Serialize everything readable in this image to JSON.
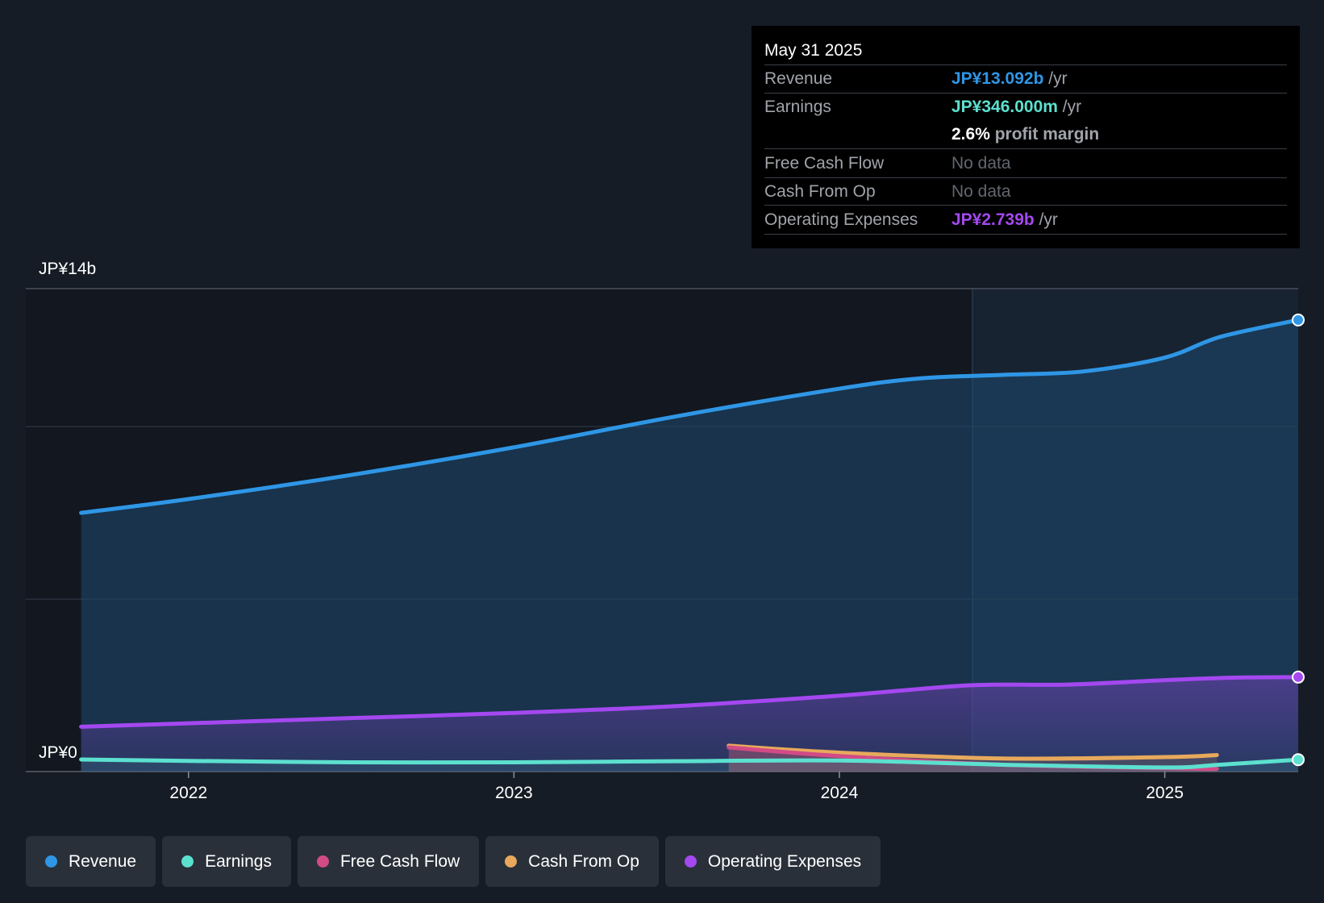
{
  "chart_data": {
    "type": "area",
    "ylabel_top": "JP¥14b",
    "ylabel_bottom": "JP¥0",
    "ylim": [
      0,
      14
    ],
    "x_ticks": [
      "2022",
      "2023",
      "2024",
      "2025"
    ],
    "series": [
      {
        "name": "Revenue",
        "color": "#2f96e6",
        "points": [
          [
            2021.67,
            7.5
          ],
          [
            2022.0,
            7.9
          ],
          [
            2022.5,
            8.6
          ],
          [
            2023.0,
            9.4
          ],
          [
            2023.5,
            10.3
          ],
          [
            2024.0,
            11.1
          ],
          [
            2024.25,
            11.4
          ],
          [
            2024.5,
            11.5
          ],
          [
            2024.75,
            11.6
          ],
          [
            2025.0,
            12.0
          ],
          [
            2025.17,
            12.6
          ],
          [
            2025.41,
            13.092
          ]
        ]
      },
      {
        "name": "Earnings",
        "color": "#5ce0cf",
        "points": [
          [
            2021.67,
            0.35
          ],
          [
            2022.0,
            0.31
          ],
          [
            2022.5,
            0.27
          ],
          [
            2023.0,
            0.27
          ],
          [
            2023.5,
            0.3
          ],
          [
            2024.0,
            0.32
          ],
          [
            2024.5,
            0.2
          ],
          [
            2025.0,
            0.12
          ],
          [
            2025.17,
            0.2
          ],
          [
            2025.41,
            0.346
          ]
        ]
      },
      {
        "name": "Free Cash Flow",
        "color": "#d14b86",
        "points": [
          [
            2023.66,
            0.7
          ],
          [
            2024.0,
            0.45
          ],
          [
            2024.5,
            0.2
          ],
          [
            2025.0,
            0.1
          ],
          [
            2025.16,
            0.08
          ]
        ]
      },
      {
        "name": "Cash From Op",
        "color": "#e8a95c",
        "points": [
          [
            2023.66,
            0.75
          ],
          [
            2024.0,
            0.55
          ],
          [
            2024.5,
            0.38
          ],
          [
            2025.0,
            0.42
          ],
          [
            2025.16,
            0.48
          ]
        ]
      },
      {
        "name": "Operating Expenses",
        "color": "#a448f0",
        "points": [
          [
            2021.67,
            1.3
          ],
          [
            2022.0,
            1.4
          ],
          [
            2022.5,
            1.55
          ],
          [
            2023.0,
            1.7
          ],
          [
            2023.5,
            1.9
          ],
          [
            2024.0,
            2.2
          ],
          [
            2024.4,
            2.5
          ],
          [
            2024.7,
            2.52
          ],
          [
            2025.0,
            2.65
          ],
          [
            2025.2,
            2.72
          ],
          [
            2025.41,
            2.739
          ]
        ]
      }
    ],
    "grid": true
  },
  "tooltip": {
    "date": "May 31 2025",
    "revenue_label": "Revenue",
    "revenue_value": "JP¥13.092b",
    "revenue_unit": "/yr",
    "earnings_label": "Earnings",
    "earnings_value": "JP¥346.000m",
    "earnings_unit": "/yr",
    "margin_value": "2.6%",
    "margin_text": "profit margin",
    "fcf_label": "Free Cash Flow",
    "fcf_value": "No data",
    "cfo_label": "Cash From Op",
    "cfo_value": "No data",
    "opex_label": "Operating Expenses",
    "opex_value": "JP¥2.739b",
    "opex_unit": "/yr"
  },
  "legend": [
    {
      "label": "Revenue",
      "color": "#2f96e6"
    },
    {
      "label": "Earnings",
      "color": "#5ce0cf"
    },
    {
      "label": "Free Cash Flow",
      "color": "#d14b86"
    },
    {
      "label": "Cash From Op",
      "color": "#e8a95c"
    },
    {
      "label": "Operating Expenses",
      "color": "#a448f0"
    }
  ]
}
